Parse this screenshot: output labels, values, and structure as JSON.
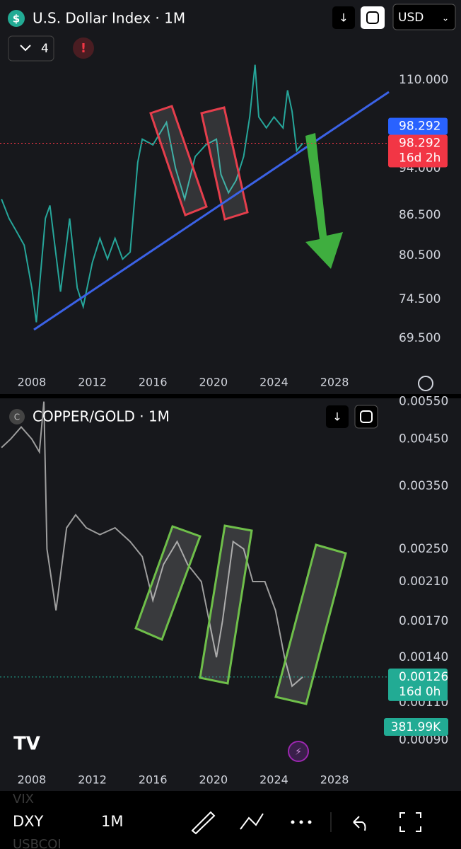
{
  "header": {
    "indicators": "4",
    "currency": "USD"
  },
  "chart_data": [
    {
      "type": "line",
      "title": "U.S. Dollar Index · 1M",
      "log_scale": true,
      "grid": false,
      "xlim": [
        2005.9,
        2031.5
      ],
      "xticks": [
        2008,
        2012,
        2016,
        2020,
        2024,
        2028
      ],
      "ylim": [
        65.1,
        126.8
      ],
      "yticks": [
        {
          "value": 69.5,
          "label": "69.500"
        },
        {
          "value": 74.5,
          "label": "74.500"
        },
        {
          "value": 80.5,
          "label": "80.500"
        },
        {
          "value": 86.5,
          "label": "86.500"
        },
        {
          "value": 94,
          "label": "94.000"
        },
        {
          "value": 110,
          "label": "110.000"
        }
      ],
      "x": [
        2006.0,
        2006.5,
        2007.0,
        2007.5,
        2008.0,
        2008.3,
        2008.9,
        2009.2,
        2009.9,
        2010.5,
        2011.0,
        2011.4,
        2012.0,
        2012.5,
        2013.0,
        2013.5,
        2014.0,
        2014.5,
        2015.0,
        2015.3,
        2016.0,
        2016.9,
        2017.5,
        2018.1,
        2018.8,
        2019.5,
        2020.2,
        2020.5,
        2021.0,
        2021.5,
        2022.0,
        2022.4,
        2022.75,
        2023.0,
        2023.5,
        2024.0,
        2024.6,
        2024.9,
        2025.2,
        2025.5,
        2025.9
      ],
      "series": [
        {
          "name": "DXY",
          "color": "#26a69a",
          "values": [
            89,
            86,
            84,
            82,
            76,
            71.5,
            86,
            88,
            75.5,
            86,
            76,
            73.5,
            79.5,
            83,
            80,
            83,
            80,
            81,
            95,
            99,
            98,
            102,
            94,
            89,
            96,
            98,
            99,
            93,
            90,
            92,
            96,
            103,
            113,
            103,
            101,
            103,
            101,
            108,
            104,
            97,
            98.292
          ]
        }
      ],
      "price_tags": [
        {
          "value": 98.292,
          "color": "#2962ff"
        },
        {
          "value": 98.292,
          "countdown": "16d 2h",
          "color": "#f23645"
        }
      ]
    },
    {
      "type": "line",
      "title": "COPPER/GOLD · 1M",
      "log_scale": true,
      "grid": false,
      "xlim": [
        2005.9,
        2031.5
      ],
      "xticks": [
        2008,
        2012,
        2016,
        2020,
        2024,
        2028
      ],
      "ylim": [
        0.000776,
        0.00566
      ],
      "yticks": [
        {
          "value": 0.0009,
          "label": "0.00090"
        },
        {
          "value": 0.0011,
          "label": "0.00110"
        },
        {
          "value": 0.0014,
          "label": "0.00140"
        },
        {
          "value": 0.0017,
          "label": "0.00170"
        },
        {
          "value": 0.0021,
          "label": "0.00210"
        },
        {
          "value": 0.0025,
          "label": "0.00250"
        },
        {
          "value": 0.0035,
          "label": "0.00350"
        },
        {
          "value": 0.0045,
          "label": "0.00450"
        },
        {
          "value": 0.0055,
          "label": "0.00550"
        }
      ],
      "x": [
        2006.0,
        2006.6,
        2007.3,
        2008.0,
        2008.5,
        2008.8,
        2009.0,
        2009.6,
        2010.3,
        2010.9,
        2011.6,
        2012.5,
        2013.5,
        2014.5,
        2015.3,
        2016.0,
        2016.7,
        2017.6,
        2018.3,
        2019.2,
        2020.2,
        2020.6,
        2021.3,
        2022.0,
        2022.6,
        2023.4,
        2024.1,
        2024.7,
        2025.2,
        2025.9
      ],
      "series": [
        {
          "name": "COPPER/GOLD",
          "color": "#9e9e9e",
          "values": [
            0.0043,
            0.0045,
            0.0048,
            0.0045,
            0.0042,
            0.0055,
            0.0025,
            0.0018,
            0.0028,
            0.003,
            0.0028,
            0.0027,
            0.0028,
            0.0026,
            0.0024,
            0.0019,
            0.0023,
            0.0026,
            0.0023,
            0.0021,
            0.0014,
            0.0017,
            0.0026,
            0.0025,
            0.0021,
            0.0021,
            0.0018,
            0.0014,
            0.0012,
            0.00126
          ]
        }
      ],
      "price_tags": [
        {
          "value": 0.00126,
          "countdown": "16d 0h",
          "color": "#22ab94"
        }
      ],
      "volume_label": "381.99K"
    }
  ],
  "toolbar": {
    "symbol": "DXY",
    "interval": "1M",
    "ghost_above": "VIX",
    "ghost_below": "USBCOI"
  }
}
